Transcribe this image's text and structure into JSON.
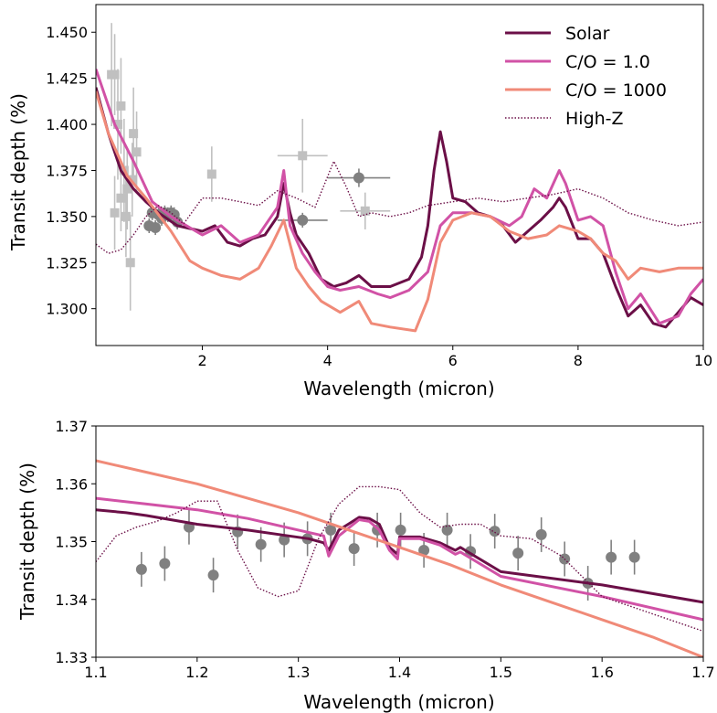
{
  "chart_data": [
    {
      "type": "line",
      "panel": "top",
      "xlabel": "Wavelength (micron)",
      "ylabel": "Transit depth (%)",
      "xlim": [
        0.3,
        10.0
      ],
      "ylim": [
        1.28,
        1.465
      ],
      "xticks": [
        2,
        4,
        6,
        8,
        10
      ],
      "yticks": [
        1.3,
        1.325,
        1.35,
        1.375,
        1.4,
        1.425,
        1.45
      ],
      "ytick_labels": [
        "1.300",
        "1.325",
        "1.350",
        "1.375",
        "1.400",
        "1.425",
        "1.450"
      ],
      "grid": false,
      "legend_position": "top-right",
      "series": [
        {
          "name": "Solar",
          "color": "#6b0f47",
          "style": "solid",
          "x": [
            0.3,
            0.5,
            0.7,
            0.9,
            1.1,
            1.3,
            1.6,
            2.0,
            2.2,
            2.4,
            2.6,
            2.8,
            3.0,
            3.2,
            3.3,
            3.4,
            3.5,
            3.7,
            3.9,
            4.1,
            4.3,
            4.5,
            4.7,
            5.0,
            5.3,
            5.5,
            5.6,
            5.7,
            5.8,
            5.9,
            6.0,
            6.2,
            6.4,
            6.6,
            6.8,
            7.0,
            7.2,
            7.4,
            7.6,
            7.7,
            7.8,
            8.0,
            8.2,
            8.4,
            8.6,
            8.8,
            9.0,
            9.2,
            9.4,
            9.6,
            9.8,
            10.0
          ],
          "y": [
            1.42,
            1.395,
            1.375,
            1.365,
            1.358,
            1.352,
            1.345,
            1.342,
            1.345,
            1.336,
            1.334,
            1.338,
            1.34,
            1.35,
            1.368,
            1.352,
            1.34,
            1.33,
            1.316,
            1.312,
            1.314,
            1.318,
            1.312,
            1.312,
            1.316,
            1.328,
            1.345,
            1.375,
            1.396,
            1.38,
            1.36,
            1.358,
            1.352,
            1.35,
            1.345,
            1.336,
            1.342,
            1.348,
            1.355,
            1.36,
            1.355,
            1.338,
            1.338,
            1.33,
            1.312,
            1.296,
            1.302,
            1.292,
            1.29,
            1.298,
            1.306,
            1.302
          ]
        },
        {
          "name": "C/O = 1.0",
          "color": "#d152a6",
          "style": "solid",
          "x": [
            0.3,
            0.6,
            0.9,
            1.2,
            1.5,
            1.8,
            2.0,
            2.3,
            2.6,
            2.9,
            3.2,
            3.3,
            3.4,
            3.6,
            3.8,
            4.0,
            4.2,
            4.5,
            4.8,
            5.0,
            5.3,
            5.6,
            5.8,
            6.0,
            6.3,
            6.6,
            6.9,
            7.1,
            7.3,
            7.5,
            7.7,
            7.8,
            8.0,
            8.2,
            8.4,
            8.6,
            8.8,
            9.0,
            9.3,
            9.6,
            9.8,
            10.0
          ],
          "y": [
            1.43,
            1.4,
            1.38,
            1.358,
            1.35,
            1.344,
            1.34,
            1.345,
            1.336,
            1.34,
            1.355,
            1.375,
            1.345,
            1.33,
            1.32,
            1.312,
            1.31,
            1.312,
            1.308,
            1.306,
            1.31,
            1.32,
            1.345,
            1.352,
            1.352,
            1.35,
            1.345,
            1.35,
            1.365,
            1.36,
            1.375,
            1.368,
            1.348,
            1.35,
            1.345,
            1.32,
            1.3,
            1.308,
            1.292,
            1.296,
            1.308,
            1.316
          ]
        },
        {
          "name": "C/O = 1000",
          "color": "#f08a78",
          "style": "solid",
          "x": [
            0.3,
            0.5,
            0.8,
            1.1,
            1.5,
            1.8,
            2.0,
            2.3,
            2.6,
            2.9,
            3.1,
            3.3,
            3.5,
            3.7,
            3.9,
            4.2,
            4.5,
            4.7,
            5.0,
            5.4,
            5.6,
            5.8,
            6.0,
            6.3,
            6.6,
            6.9,
            7.2,
            7.5,
            7.7,
            8.0,
            8.2,
            8.4,
            8.6,
            8.8,
            9.0,
            9.3,
            9.6,
            9.8,
            10.0
          ],
          "y": [
            1.418,
            1.395,
            1.372,
            1.36,
            1.342,
            1.326,
            1.322,
            1.318,
            1.316,
            1.322,
            1.334,
            1.348,
            1.322,
            1.312,
            1.304,
            1.298,
            1.304,
            1.292,
            1.29,
            1.288,
            1.305,
            1.336,
            1.348,
            1.352,
            1.35,
            1.342,
            1.338,
            1.34,
            1.345,
            1.342,
            1.338,
            1.33,
            1.326,
            1.316,
            1.322,
            1.32,
            1.322,
            1.322,
            1.322
          ]
        },
        {
          "name": "High-Z",
          "color": "#6b0f47",
          "style": "dotted",
          "x": [
            0.3,
            0.5,
            0.7,
            0.9,
            1.1,
            1.3,
            1.5,
            1.7,
            2.0,
            2.3,
            2.6,
            2.9,
            3.2,
            3.5,
            3.8,
            4.1,
            4.3,
            4.5,
            4.7,
            5.0,
            5.3,
            5.6,
            6.0,
            6.4,
            6.8,
            7.2,
            7.6,
            8.0,
            8.4,
            8.8,
            9.2,
            9.6,
            10.0
          ],
          "y": [
            1.335,
            1.33,
            1.332,
            1.34,
            1.35,
            1.356,
            1.352,
            1.346,
            1.36,
            1.36,
            1.358,
            1.356,
            1.364,
            1.36,
            1.355,
            1.38,
            1.366,
            1.35,
            1.352,
            1.35,
            1.352,
            1.356,
            1.358,
            1.36,
            1.358,
            1.36,
            1.362,
            1.365,
            1.36,
            1.352,
            1.348,
            1.345,
            1.347
          ]
        }
      ],
      "data_points": [
        {
          "name": "",
          "color": "#c0c0c0",
          "marker": "square",
          "x": [
            0.55,
            0.6,
            0.65,
            0.7,
            0.75,
            0.8,
            0.85,
            0.9,
            0.95,
            0.6,
            0.7,
            0.78,
            0.88,
            2.15,
            3.6,
            4.6
          ],
          "y": [
            1.427,
            1.427,
            1.4,
            1.41,
            1.375,
            1.365,
            1.325,
            1.395,
            1.385,
            1.352,
            1.36,
            1.35,
            1.37,
            1.373,
            1.383,
            1.353
          ],
          "yerr": [
            0.028,
            0.022,
            0.03,
            0.026,
            0.028,
            0.022,
            0.026,
            0.025,
            0.022,
            0.02,
            0.018,
            0.022,
            0.02,
            0.015,
            0.02,
            0.01
          ],
          "xerr": [
            0,
            0,
            0,
            0,
            0,
            0,
            0,
            0,
            0,
            0,
            0,
            0,
            0,
            0,
            0.4,
            0.4
          ]
        },
        {
          "name": "",
          "color": "#808080",
          "marker": "circle",
          "x": [
            1.15,
            1.2,
            1.25,
            1.3,
            1.35,
            1.4,
            1.45,
            1.5,
            1.55,
            1.6,
            3.6,
            4.5
          ],
          "y": [
            1.345,
            1.352,
            1.344,
            1.351,
            1.349,
            1.352,
            1.351,
            1.352,
            1.351,
            1.347,
            1.348,
            1.371
          ],
          "yerr": [
            0.004,
            0.004,
            0.004,
            0.004,
            0.004,
            0.004,
            0.004,
            0.004,
            0.004,
            0.004,
            0.004,
            0.005
          ],
          "xerr": [
            0,
            0,
            0,
            0,
            0,
            0,
            0,
            0,
            0,
            0,
            0.4,
            0.5
          ]
        }
      ]
    },
    {
      "type": "line",
      "panel": "bottom",
      "xlabel": "Wavelength (micron)",
      "ylabel": "Transit depth (%)",
      "xlim": [
        1.1,
        1.7
      ],
      "ylim": [
        1.33,
        1.37
      ],
      "xticks": [
        1.1,
        1.2,
        1.3,
        1.4,
        1.5,
        1.6,
        1.7
      ],
      "xtick_labels": [
        "1.1",
        "1.2",
        "1.3",
        "1.4",
        "1.5",
        "1.6",
        "1.7"
      ],
      "yticks": [
        1.33,
        1.34,
        1.35,
        1.36,
        1.37
      ],
      "ytick_labels": [
        "1.33",
        "1.34",
        "1.35",
        "1.36",
        "1.37"
      ],
      "grid": false,
      "series": [
        {
          "name": "Solar",
          "color": "#6b0f47",
          "style": "solid",
          "x": [
            1.1,
            1.13,
            1.15,
            1.2,
            1.25,
            1.29,
            1.31,
            1.325,
            1.33,
            1.34,
            1.36,
            1.37,
            1.38,
            1.39,
            1.398,
            1.4,
            1.42,
            1.44,
            1.455,
            1.46,
            1.5,
            1.6,
            1.7
          ],
          "y": [
            1.3555,
            1.355,
            1.3545,
            1.353,
            1.352,
            1.351,
            1.3505,
            1.3498,
            1.3485,
            1.352,
            1.3542,
            1.354,
            1.353,
            1.349,
            1.3478,
            1.3508,
            1.3508,
            1.3498,
            1.3485,
            1.349,
            1.3448,
            1.3425,
            1.3395
          ]
        },
        {
          "name": "C/O = 1.0",
          "color": "#d152a6",
          "style": "solid",
          "x": [
            1.1,
            1.15,
            1.2,
            1.25,
            1.3,
            1.325,
            1.33,
            1.34,
            1.36,
            1.37,
            1.38,
            1.39,
            1.398,
            1.4,
            1.42,
            1.44,
            1.455,
            1.46,
            1.5,
            1.6,
            1.7
          ],
          "y": [
            1.3575,
            1.3565,
            1.3555,
            1.354,
            1.352,
            1.351,
            1.3475,
            1.351,
            1.3538,
            1.3535,
            1.352,
            1.3485,
            1.347,
            1.3505,
            1.3505,
            1.3494,
            1.3478,
            1.3482,
            1.344,
            1.3405,
            1.3365
          ]
        },
        {
          "name": "C/O = 1000",
          "color": "#f08a78",
          "style": "solid",
          "x": [
            1.1,
            1.15,
            1.2,
            1.25,
            1.3,
            1.35,
            1.4,
            1.45,
            1.5,
            1.55,
            1.6,
            1.65,
            1.7
          ],
          "y": [
            1.364,
            1.362,
            1.36,
            1.3575,
            1.355,
            1.352,
            1.349,
            1.346,
            1.3425,
            1.3395,
            1.3365,
            1.3335,
            1.33
          ]
        },
        {
          "name": "High-Z",
          "color": "#6b0f47",
          "style": "dotted",
          "x": [
            1.1,
            1.12,
            1.14,
            1.16,
            1.18,
            1.2,
            1.22,
            1.24,
            1.26,
            1.28,
            1.3,
            1.32,
            1.34,
            1.36,
            1.38,
            1.4,
            1.42,
            1.44,
            1.46,
            1.48,
            1.5,
            1.53,
            1.56,
            1.6,
            1.65,
            1.7
          ],
          "y": [
            1.3465,
            1.351,
            1.3525,
            1.3535,
            1.355,
            1.357,
            1.357,
            1.3485,
            1.342,
            1.3405,
            1.3415,
            1.3505,
            1.3565,
            1.3595,
            1.3595,
            1.359,
            1.355,
            1.3525,
            1.353,
            1.353,
            1.351,
            1.3505,
            1.3475,
            1.3405,
            1.3375,
            1.3345
          ]
        }
      ],
      "data_points": [
        {
          "name": "",
          "color": "#808080",
          "marker": "circle",
          "x": [
            1.145,
            1.168,
            1.192,
            1.216,
            1.24,
            1.263,
            1.286,
            1.309,
            1.332,
            1.355,
            1.378,
            1.401,
            1.424,
            1.447,
            1.47,
            1.494,
            1.517,
            1.54,
            1.563,
            1.586,
            1.609,
            1.632
          ],
          "y": [
            1.3452,
            1.3462,
            1.3525,
            1.3442,
            1.3517,
            1.3495,
            1.3503,
            1.3505,
            1.352,
            1.3488,
            1.352,
            1.352,
            1.3485,
            1.352,
            1.3483,
            1.3518,
            1.348,
            1.3512,
            1.347,
            1.3428,
            1.3473,
            1.3473
          ],
          "yerr": [
            0.003,
            0.003,
            0.003,
            0.003,
            0.003,
            0.003,
            0.003,
            0.003,
            0.003,
            0.003,
            0.003,
            0.003,
            0.003,
            0.003,
            0.003,
            0.003,
            0.003,
            0.003,
            0.003,
            0.003,
            0.003,
            0.003
          ]
        }
      ]
    }
  ]
}
